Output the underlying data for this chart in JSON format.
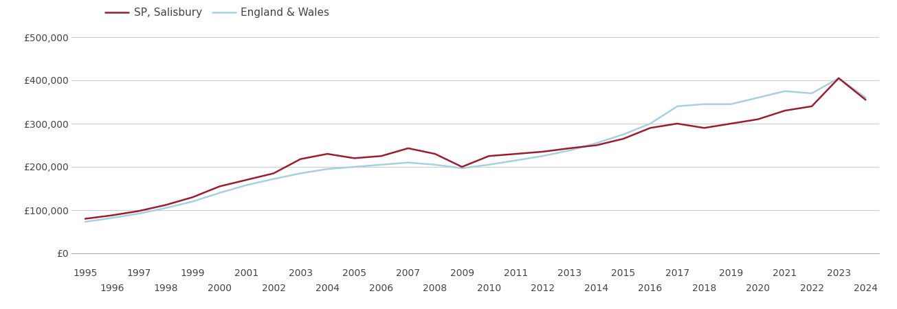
{
  "salisbury_years": [
    1995,
    1996,
    1997,
    1998,
    1999,
    2000,
    2001,
    2002,
    2003,
    2004,
    2005,
    2006,
    2007,
    2008,
    2009,
    2010,
    2011,
    2012,
    2013,
    2014,
    2015,
    2016,
    2017,
    2018,
    2019,
    2020,
    2021,
    2022,
    2023,
    2024
  ],
  "salisbury_values": [
    80000,
    88000,
    98000,
    112000,
    130000,
    155000,
    170000,
    185000,
    218000,
    230000,
    220000,
    225000,
    243000,
    230000,
    200000,
    225000,
    230000,
    235000,
    243000,
    250000,
    265000,
    290000,
    300000,
    290000,
    300000,
    310000,
    330000,
    340000,
    405000,
    355000
  ],
  "ew_years": [
    1995,
    1996,
    1997,
    1998,
    1999,
    2000,
    2001,
    2002,
    2003,
    2004,
    2005,
    2006,
    2007,
    2008,
    2009,
    2010,
    2011,
    2012,
    2013,
    2014,
    2015,
    2016,
    2017,
    2018,
    2019,
    2020,
    2021,
    2022,
    2023,
    2024
  ],
  "ew_values": [
    73000,
    82000,
    92000,
    105000,
    120000,
    140000,
    158000,
    172000,
    185000,
    195000,
    200000,
    205000,
    210000,
    205000,
    197000,
    205000,
    215000,
    225000,
    238000,
    255000,
    275000,
    300000,
    340000,
    345000,
    345000,
    360000,
    375000,
    370000,
    405000,
    360000
  ],
  "salisbury_color": "#9b1c2e",
  "ew_color": "#a8cfe0",
  "salisbury_label": "SP, Salisbury",
  "ew_label": "England & Wales",
  "ylim": [
    0,
    500000
  ],
  "yticks": [
    0,
    100000,
    200000,
    300000,
    400000,
    500000
  ],
  "ytick_labels": [
    "£0",
    "£100,000",
    "£200,000",
    "£300,000",
    "£400,000",
    "£500,000"
  ],
  "xticks_odd": [
    1995,
    1997,
    1999,
    2001,
    2003,
    2005,
    2007,
    2009,
    2011,
    2013,
    2015,
    2017,
    2019,
    2021,
    2023
  ],
  "xticks_even": [
    1996,
    1998,
    2000,
    2002,
    2004,
    2006,
    2008,
    2010,
    2012,
    2014,
    2016,
    2018,
    2020,
    2022,
    2024
  ],
  "background_color": "#ffffff",
  "grid_color": "#cccccc",
  "line_width": 1.8,
  "legend_fontsize": 11,
  "tick_fontsize": 10,
  "tick_color": "#444444"
}
